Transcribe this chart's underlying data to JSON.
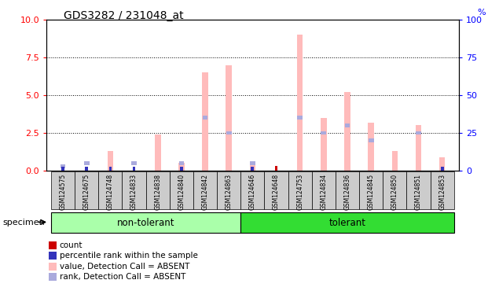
{
  "title": "GDS3282 / 231048_at",
  "samples": [
    "GSM124575",
    "GSM124675",
    "GSM124748",
    "GSM124833",
    "GSM124838",
    "GSM124840",
    "GSM124842",
    "GSM124863",
    "GSM124646",
    "GSM124648",
    "GSM124753",
    "GSM124834",
    "GSM124836",
    "GSM124845",
    "GSM124850",
    "GSM124851",
    "GSM124853"
  ],
  "non_tolerant_count": 8,
  "tolerant_count": 9,
  "value_absent": [
    0.0,
    0.0,
    1.3,
    0.0,
    2.4,
    0.5,
    6.5,
    7.0,
    0.4,
    0.0,
    9.0,
    3.5,
    5.2,
    3.2,
    1.3,
    3.0,
    0.9
  ],
  "rank_absent": [
    0.3,
    0.5,
    0.0,
    0.5,
    0.0,
    0.5,
    3.5,
    2.5,
    0.5,
    0.0,
    3.5,
    2.5,
    3.0,
    2.0,
    0.0,
    2.5,
    0.0
  ],
  "count": [
    0.0,
    0.0,
    0.0,
    0.0,
    0.0,
    0.0,
    0.0,
    0.0,
    0.0,
    0.4,
    0.0,
    0.0,
    0.0,
    0.0,
    0.0,
    0.0,
    0.0
  ],
  "percentile": [
    0.3,
    0.5,
    1.3,
    0.5,
    0.0,
    0.5,
    0.0,
    0.0,
    0.5,
    0.0,
    0.0,
    0.0,
    0.0,
    0.0,
    0.0,
    0.0,
    0.5
  ],
  "ylim_left": [
    0,
    10
  ],
  "ylim_right": [
    0,
    100
  ],
  "yticks_left": [
    0,
    2.5,
    5.0,
    7.5,
    10.0
  ],
  "yticks_right": [
    0,
    25,
    50,
    75,
    100
  ],
  "color_count": "#cc0000",
  "color_percentile": "#3333bb",
  "color_value_absent": "#ffbbbb",
  "color_rank_absent": "#aaaadd",
  "color_group_nontolerant": "#aaffaa",
  "color_group_tolerant": "#33dd33",
  "color_label_bg": "#cccccc",
  "bar_width": 0.25
}
